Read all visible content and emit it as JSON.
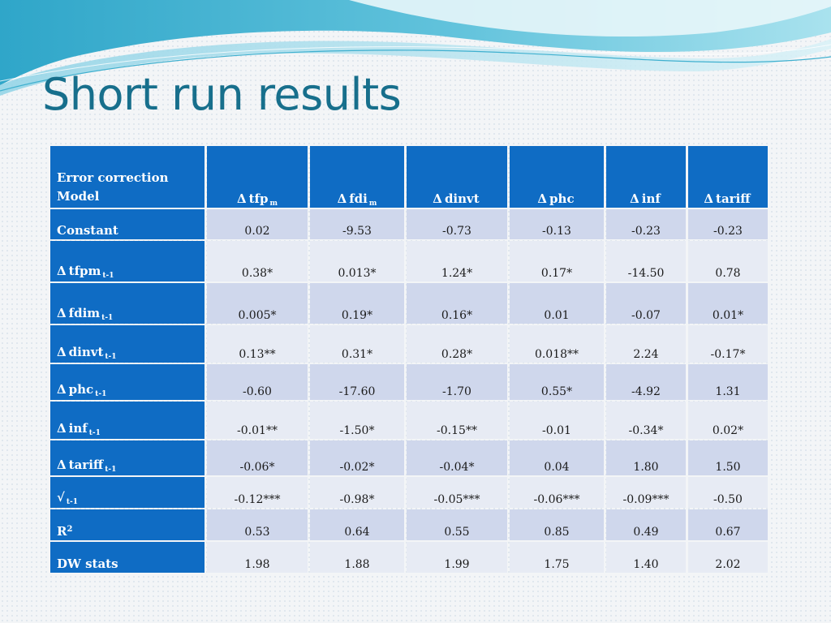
{
  "slide": {
    "title": "Short run results"
  },
  "table": {
    "corner_label": "Error correction Model",
    "columns": [
      {
        "prefix": "Δ",
        "name": "tfp",
        "sub": "m"
      },
      {
        "prefix": "Δ",
        "name": "fdi",
        "sub": "m"
      },
      {
        "prefix": "Δ",
        "name": "dinvt",
        "sub": ""
      },
      {
        "prefix": "Δ",
        "name": "phc",
        "sub": ""
      },
      {
        "prefix": "Δ",
        "name": "inf",
        "sub": ""
      },
      {
        "prefix": "Δ",
        "name": "tariff",
        "sub": ""
      }
    ],
    "rows": [
      {
        "prefix": "",
        "label": "Constant",
        "sub": "",
        "sup": "",
        "values": [
          "0.02",
          "-9.53",
          "-0.73",
          "-0.13",
          "-0.23",
          "-0.23"
        ]
      },
      {
        "prefix": "Δ",
        "label": "tfpm",
        "sub": "t-1",
        "sup": "",
        "values": [
          "0.38*",
          "0.013*",
          "1.24*",
          "0.17*",
          "-14.50",
          "0.78"
        ]
      },
      {
        "prefix": "Δ",
        "label": "fdim",
        "sub": "t-1",
        "sup": "",
        "values": [
          "0.005*",
          "0.19*",
          "0.16*",
          "0.01",
          "-0.07",
          "0.01*"
        ]
      },
      {
        "prefix": "Δ",
        "label": "dinvt",
        "sub": "t-1",
        "sup": "",
        "values": [
          "0.13**",
          "0.31*",
          "0.28*",
          "0.018**",
          "2.24",
          "-0.17*"
        ]
      },
      {
        "prefix": "Δ",
        "label": "phc",
        "sub": "t-1",
        "sup": "",
        "values": [
          "-0.60",
          "-17.60",
          "-1.70",
          "0.55*",
          "-4.92",
          "1.31"
        ]
      },
      {
        "prefix": "Δ",
        "label": "inf",
        "sub": "t-1",
        "sup": "",
        "values": [
          "-0.01**",
          "-1.50*",
          "-0.15**",
          "-0.01",
          "-0.34*",
          "0.02*"
        ]
      },
      {
        "prefix": "Δ",
        "label": "tariff",
        "sub": "t-1",
        "sup": "",
        "values": [
          "-0.06*",
          "-0.02*",
          "-0.04*",
          "0.04",
          "1.80",
          "1.50"
        ]
      },
      {
        "prefix": "",
        "label": "√",
        "sub": "t-1",
        "sup": "",
        "values": [
          "-0.12***",
          "-0.98*",
          "-0.05***",
          "-0.06***",
          "-0.09***",
          "-0.50"
        ]
      },
      {
        "prefix": "",
        "label": "R",
        "sub": "",
        "sup": "2",
        "values": [
          "0.53",
          "0.64",
          "0.55",
          "0.85",
          "0.49",
          "0.67"
        ]
      },
      {
        "prefix": "",
        "label": "DW stats",
        "sub": "",
        "sup": "",
        "values": [
          "1.98",
          "1.88",
          "1.99",
          "1.75",
          "1.40",
          "2.02"
        ]
      }
    ]
  },
  "colors": {
    "title": "#176f8c",
    "header_fill": "#0f6cc4",
    "row_odd_fill": "#cfd7ec",
    "row_even_fill": "#e7ebf4"
  }
}
